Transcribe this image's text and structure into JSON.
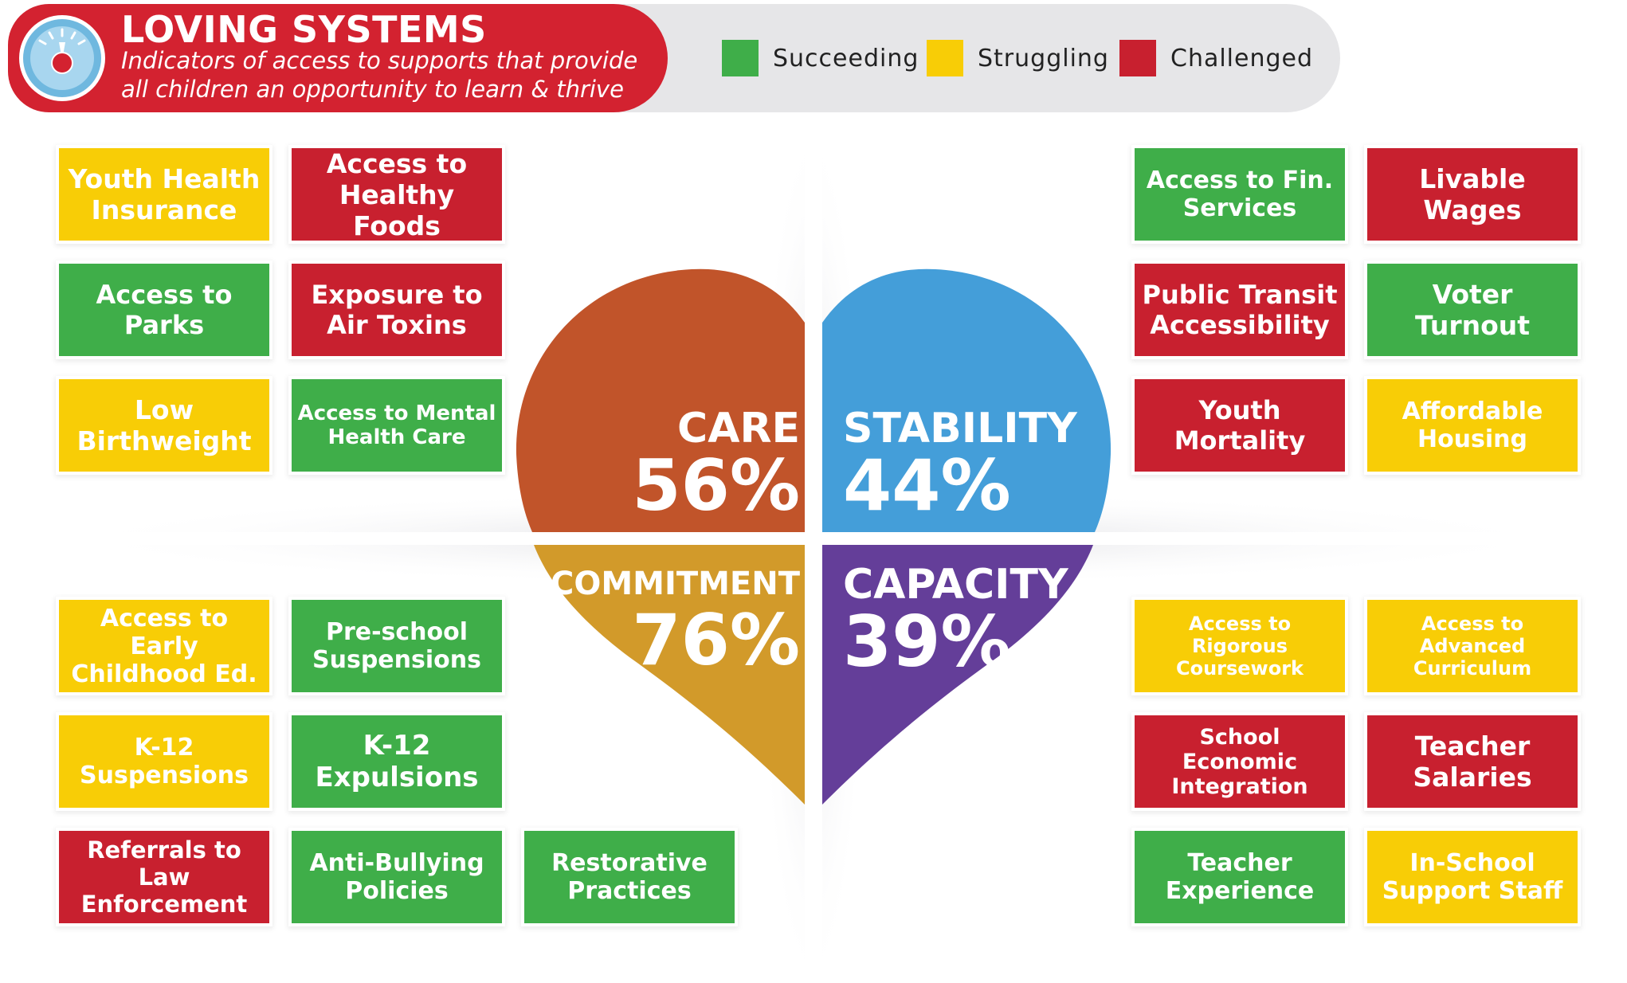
{
  "header": {
    "title": "LOVING SYSTEMS",
    "subtitle": "Indicators of access to supports that provide all children an opportunity to learn & thrive",
    "icon": "gauge-icon"
  },
  "legend": [
    {
      "label": "Succeeding",
      "status": "succeeding"
    },
    {
      "label": "Struggling",
      "status": "struggling"
    },
    {
      "label": "Challenged",
      "status": "challenged"
    }
  ],
  "colors": {
    "succeeding": "#3fae49",
    "struggling": "#f8cd06",
    "challenged": "#c8202f",
    "care": "#c1542a",
    "stability": "#449ed9",
    "commitment": "#d29a2a",
    "capacity": "#643e99",
    "title_red": "#d32230"
  },
  "quadrants": {
    "care": {
      "name": "CARE",
      "value": "56%"
    },
    "stability": {
      "name": "STABILITY",
      "value": "44%"
    },
    "commitment": {
      "name": "COMMITMENT",
      "value": "76%"
    },
    "capacity": {
      "name": "CAPACITY",
      "value": "39%"
    }
  },
  "indicators": [
    {
      "label": "Youth Health Insurance",
      "status": "struggling"
    },
    {
      "label": "Access to Healthy Foods",
      "status": "challenged"
    },
    {
      "label": "Access to Parks",
      "status": "succeeding"
    },
    {
      "label": "Exposure to Air Toxins",
      "status": "challenged"
    },
    {
      "label": "Low Birthweight",
      "status": "struggling"
    },
    {
      "label": "Access to Mental Health Care",
      "status": "succeeding"
    },
    {
      "label": "Access to Fin. Services",
      "status": "succeeding"
    },
    {
      "label": "Livable Wages",
      "status": "challenged"
    },
    {
      "label": "Public Transit Accessibility",
      "status": "challenged"
    },
    {
      "label": "Voter Turnout",
      "status": "succeeding"
    },
    {
      "label": "Youth Mortality",
      "status": "challenged"
    },
    {
      "label": "Affordable Housing",
      "status": "struggling"
    },
    {
      "label": "Access to Early Childhood Ed.",
      "status": "struggling"
    },
    {
      "label": "Pre-school Suspensions",
      "status": "succeeding"
    },
    {
      "label": "K-12 Suspensions",
      "status": "struggling"
    },
    {
      "label": "K-12 Expulsions",
      "status": "succeeding"
    },
    {
      "label": "Referrals to Law Enforcement",
      "status": "challenged"
    },
    {
      "label": "Anti-Bullying Policies",
      "status": "succeeding"
    },
    {
      "label": "Restorative Practices",
      "status": "succeeding"
    },
    {
      "label": "Access to Rigorous Coursework",
      "status": "struggling"
    },
    {
      "label": "Access to Advanced Curriculum",
      "status": "struggling"
    },
    {
      "label": "School Economic Integration",
      "status": "challenged"
    },
    {
      "label": "Teacher Salaries",
      "status": "challenged"
    },
    {
      "label": "Teacher Experience",
      "status": "succeeding"
    },
    {
      "label": "In-School Support Staff",
      "status": "struggling"
    }
  ]
}
